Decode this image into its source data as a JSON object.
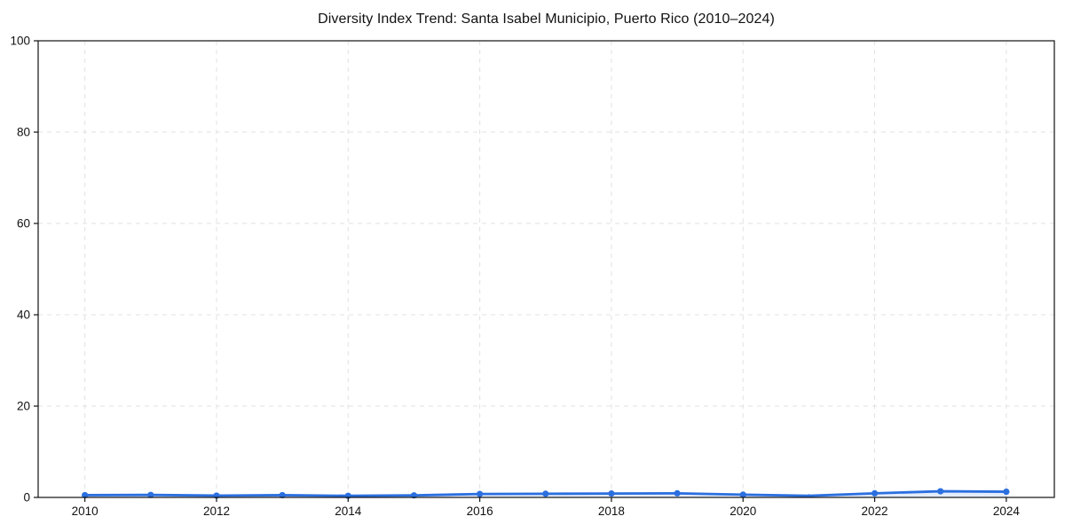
{
  "page": {
    "background": "#ffffff"
  },
  "chart_data": {
    "type": "line",
    "title": "Diversity Index Trend: Santa Isabel Municipio, Puerto Rico (2010–2024)",
    "xlabel": "",
    "ylabel": "",
    "x": [
      2010,
      2011,
      2012,
      2013,
      2014,
      2015,
      2016,
      2017,
      2018,
      2019,
      2020,
      2021,
      2022,
      2023,
      2024
    ],
    "series": [
      {
        "name": "Diversity Index",
        "values": [
          0.5,
          0.55,
          0.4,
          0.5,
          0.35,
          0.45,
          0.75,
          0.8,
          0.85,
          0.9,
          0.6,
          0.35,
          0.9,
          1.35,
          1.25
        ]
      }
    ],
    "xticks": [
      2010,
      2012,
      2014,
      2016,
      2018,
      2020,
      2022,
      2024
    ],
    "xtick_labels": [
      "2010",
      "2012",
      "2014",
      "2016",
      "2018",
      "2020",
      "2022",
      "2024"
    ],
    "yticks": [
      0,
      20,
      40,
      60,
      80,
      100
    ],
    "ytick_labels": [
      "0",
      "20",
      "40",
      "60",
      "80",
      "100"
    ],
    "xlim": [
      2009.29,
      2024.73
    ],
    "ylim": [
      0,
      100
    ],
    "grid": true,
    "grid_style": "dashed",
    "legend_position": "none",
    "small_marker_x": 2021,
    "colors": {
      "line": "#2b6fdf",
      "marker": "#2b6fdf",
      "area_fill": "rgba(43,111,223,0.13)",
      "grid": "#e2e2e2",
      "spine": "#111111",
      "tick": "#111111",
      "text": "#111111",
      "background": "#ffffff"
    }
  }
}
